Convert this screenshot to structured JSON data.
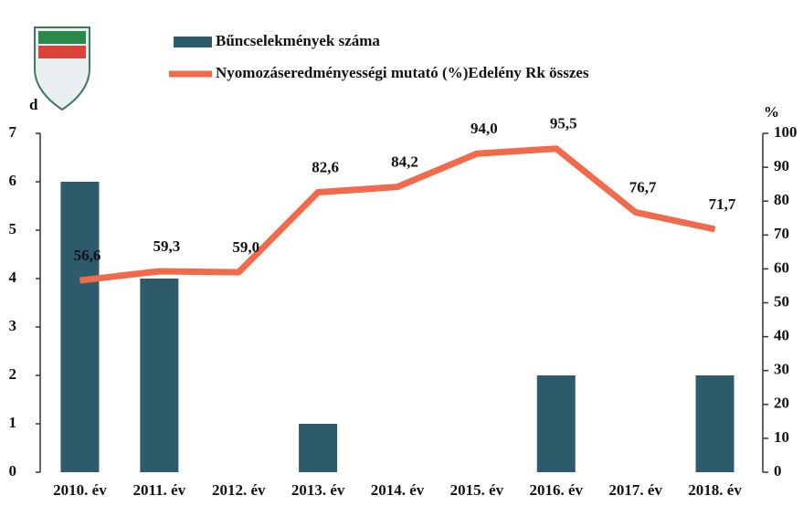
{
  "chart_data": {
    "type": "bar_line",
    "y_label": "d",
    "y2_label": "%",
    "categories": [
      "2010. év",
      "2011. év",
      "2012. év",
      "2013. év",
      "2014. év",
      "2015. év",
      "2016. év",
      "2017. év",
      "2018. év"
    ],
    "series": [
      {
        "name": "Bűncselekmények száma",
        "type": "bar",
        "color": "#2e5b6b",
        "values": [
          6,
          4,
          0,
          1,
          0,
          0,
          2,
          0,
          2
        ]
      },
      {
        "name": "Nyomozáseredményességi mutató (%)Edelény Rk összes",
        "type": "line",
        "axis": "y2",
        "color": "#f26a4c",
        "values": [
          56.6,
          59.3,
          59.0,
          82.6,
          84.2,
          94.0,
          95.5,
          76.7,
          71.7
        ],
        "value_labels": [
          "56,6",
          "59,3",
          "59,0",
          "82,6",
          "84,2",
          "94,0",
          "95,5",
          "76,7",
          "71,7"
        ]
      }
    ],
    "ylim": [
      0,
      7
    ],
    "yticks": [
      0,
      1,
      2,
      3,
      4,
      5,
      6,
      7
    ],
    "y2lim": [
      0,
      100
    ],
    "y2ticks": [
      0,
      10,
      20,
      30,
      40,
      50,
      60,
      70,
      80,
      90,
      100
    ]
  }
}
